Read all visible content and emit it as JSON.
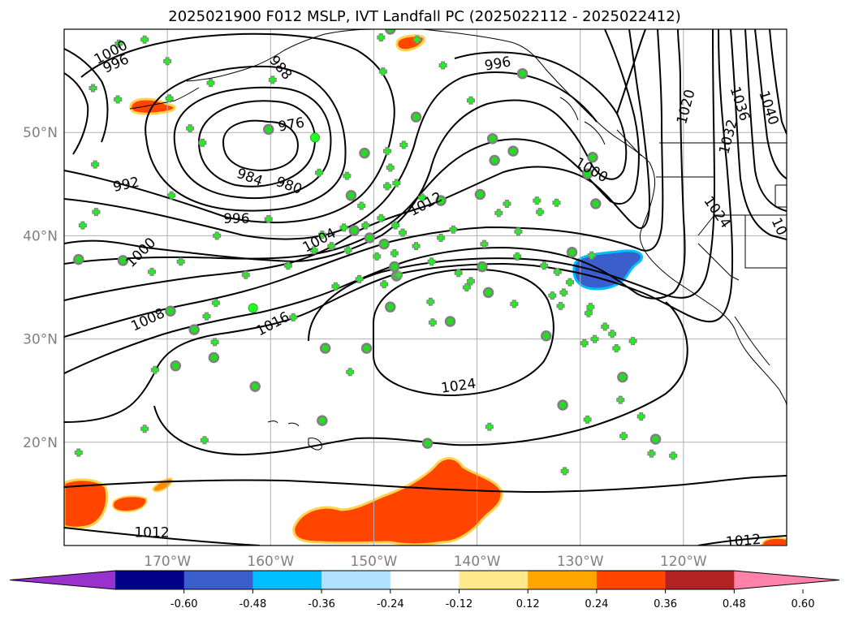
{
  "title": "2025021900 F012 MSLP, IVT Landfall PC (2025022112 - 2025022412)",
  "map": {
    "lon_range": [
      -180,
      -110
    ],
    "lat_range": [
      10,
      60
    ],
    "lat_labels": [
      "50°N",
      "40°N",
      "30°N",
      "20°N"
    ],
    "lon_labels": [
      "170°W",
      "160°W",
      "150°W",
      "140°W",
      "130°W",
      "120°W"
    ],
    "grid": true,
    "contour_labels": [
      {
        "text": "1000",
        "lon": -175.5,
        "lat": 57.8,
        "rot": -28
      },
      {
        "text": "996",
        "lon": -175.0,
        "lat": 56.7,
        "rot": -24
      },
      {
        "text": "988",
        "lon": -159.0,
        "lat": 56.3,
        "rot": 50
      },
      {
        "text": "996",
        "lon": -138.0,
        "lat": 56.7,
        "rot": -10
      },
      {
        "text": "976",
        "lon": -158.0,
        "lat": 50.8,
        "rot": -10
      },
      {
        "text": "984",
        "lon": -162.0,
        "lat": 45.7,
        "rot": 20
      },
      {
        "text": "980",
        "lon": -158.2,
        "lat": 44.9,
        "rot": 20
      },
      {
        "text": "992",
        "lon": -174.0,
        "lat": 45.0,
        "rot": -12
      },
      {
        "text": "996",
        "lon": -163.3,
        "lat": 41.7,
        "rot": 0
      },
      {
        "text": "1000",
        "lon": -172.6,
        "lat": 38.4,
        "rot": -45
      },
      {
        "text": "1004",
        "lon": -155.3,
        "lat": 39.6,
        "rot": -28
      },
      {
        "text": "1012",
        "lon": -145.0,
        "lat": 43.1,
        "rot": -28
      },
      {
        "text": "1008",
        "lon": -171.9,
        "lat": 31.9,
        "rot": -25
      },
      {
        "text": "1016",
        "lon": -159.8,
        "lat": 31.5,
        "rot": -28
      },
      {
        "text": "1024",
        "lon": -141.8,
        "lat": 25.5,
        "rot": -8
      },
      {
        "text": "1000",
        "lon": -128.9,
        "lat": 46.4,
        "rot": 30
      },
      {
        "text": "1020",
        "lon": -119.8,
        "lat": 52.5,
        "rot": -75
      },
      {
        "text": "1036",
        "lon": -114.5,
        "lat": 52.8,
        "rot": 72
      },
      {
        "text": "1040",
        "lon": -111.7,
        "lat": 52.4,
        "rot": 72
      },
      {
        "text": "1032",
        "lon": -115.7,
        "lat": 49.6,
        "rot": -75
      },
      {
        "text": "1024",
        "lon": -116.7,
        "lat": 42.3,
        "rot": 55
      },
      {
        "text": "10",
        "lon": -110.7,
        "lat": 40.9,
        "rot": 65
      },
      {
        "text": "1012",
        "lon": -171.5,
        "lat": 11.3,
        "rot": 0
      },
      {
        "text": "1012",
        "lon": -114.2,
        "lat": 10.5,
        "rot": -5
      }
    ],
    "stations_plus": [
      [
        -174.7,
        58.6
      ],
      [
        -172.2,
        59.0
      ],
      [
        -170.0,
        56.9
      ],
      [
        -177.2,
        54.3
      ],
      [
        -174.8,
        53.2
      ],
      [
        -169.8,
        53.3
      ],
      [
        -169.6,
        43.9
      ],
      [
        -176.9,
        42.3
      ],
      [
        -177.0,
        46.9
      ],
      [
        -165.8,
        54.8
      ],
      [
        -166.6,
        49.0
      ],
      [
        -167.8,
        50.4
      ],
      [
        -165.2,
        40.0
      ],
      [
        -159.8,
        55.1
      ],
      [
        -160.2,
        41.6
      ],
      [
        -155.3,
        46.1
      ],
      [
        -155.0,
        40.1
      ],
      [
        -158.3,
        37.1
      ],
      [
        -155.8,
        38.6
      ],
      [
        -154.1,
        39.0
      ],
      [
        -152.5,
        38.6
      ],
      [
        -153.7,
        35.1
      ],
      [
        -152.9,
        40.8
      ],
      [
        -150.8,
        41.0
      ],
      [
        -148.7,
        44.8
      ],
      [
        -147.9,
        41.0
      ],
      [
        -148.0,
        38.3
      ],
      [
        -149.7,
        38.0
      ],
      [
        -151.4,
        35.8
      ],
      [
        -149.0,
        35.3
      ],
      [
        -148.7,
        48.2
      ],
      [
        -147.2,
        40.3
      ],
      [
        -145.9,
        39.0
      ],
      [
        -145.3,
        43.7
      ],
      [
        -144.4,
        37.5
      ],
      [
        -143.5,
        39.8
      ],
      [
        -142.3,
        40.6
      ],
      [
        -141.8,
        36.4
      ],
      [
        -141.0,
        35.0
      ],
      [
        -140.6,
        35.6
      ],
      [
        -139.3,
        39.2
      ],
      [
        -137.9,
        42.2
      ],
      [
        -137.1,
        43.1
      ],
      [
        -136.0,
        40.4
      ],
      [
        -134.2,
        43.4
      ],
      [
        -133.9,
        42.3
      ],
      [
        -132.3,
        43.2
      ],
      [
        -133.5,
        37.1
      ],
      [
        -132.7,
        34.2
      ],
      [
        -132.2,
        36.5
      ],
      [
        -131.0,
        35.5
      ],
      [
        -129.2,
        32.5
      ],
      [
        -129.0,
        33.1
      ],
      [
        -129.6,
        29.6
      ],
      [
        -128.6,
        30.0
      ],
      [
        -127.6,
        31.2
      ],
      [
        -126.1,
        24.1
      ],
      [
        -124.1,
        22.5
      ],
      [
        -123.1,
        18.9
      ],
      [
        -121.0,
        18.7
      ],
      [
        -125.8,
        20.6
      ],
      [
        -126.5,
        29.1
      ],
      [
        -129.3,
        22.2
      ],
      [
        -131.5,
        17.2
      ],
      [
        -131.9,
        33.2
      ],
      [
        -131.6,
        34.5
      ],
      [
        -124.9,
        29.8
      ],
      [
        -126.9,
        30.5
      ],
      [
        -128.9,
        38.1
      ],
      [
        -136.1,
        38.0
      ],
      [
        -136.4,
        33.4
      ],
      [
        -138.8,
        21.5
      ],
      [
        -144.5,
        33.6
      ],
      [
        -144.3,
        31.6
      ],
      [
        -152.6,
        45.8
      ],
      [
        -149.3,
        41.7
      ],
      [
        -147.1,
        48.8
      ],
      [
        -143.3,
        56.5
      ],
      [
        -140.6,
        53.1
      ],
      [
        -145.8,
        59.0
      ],
      [
        -149.3,
        59.2
      ],
      [
        -149.1,
        55.9
      ],
      [
        -147.6,
        36.2
      ],
      [
        -151.2,
        42.9
      ],
      [
        -162.4,
        36.2
      ],
      [
        -165.3,
        33.5
      ],
      [
        -166.2,
        32.2
      ],
      [
        -165.4,
        29.7
      ],
      [
        -168.7,
        37.5
      ],
      [
        -171.5,
        36.5
      ],
      [
        -172.2,
        21.3
      ],
      [
        -166.4,
        20.2
      ],
      [
        -171.2,
        27.0
      ],
      [
        -178.6,
        19.0
      ],
      [
        -178.2,
        41.0
      ],
      [
        -157.8,
        32.1
      ],
      [
        -152.3,
        26.8
      ],
      [
        -148.4,
        46.6
      ],
      [
        -147.8,
        45.1
      ]
    ],
    "stations_circle": [
      [
        -178.6,
        37.7
      ],
      [
        -174.3,
        37.6
      ],
      [
        -167.4,
        30.9
      ],
      [
        -165.5,
        28.2
      ],
      [
        -161.5,
        25.4
      ],
      [
        -169.7,
        32.7
      ],
      [
        -169.2,
        27.4
      ],
      [
        -154.7,
        29.1
      ],
      [
        -150.7,
        29.1
      ],
      [
        -148.4,
        33.1
      ],
      [
        -147.8,
        36.1
      ],
      [
        -155.0,
        22.1
      ],
      [
        -148.0,
        37.0
      ],
      [
        -144.8,
        19.9
      ],
      [
        -139.5,
        37.0
      ],
      [
        -138.9,
        34.5
      ],
      [
        -136.5,
        48.2
      ],
      [
        -138.3,
        47.3
      ],
      [
        -138.5,
        49.4
      ],
      [
        -139.7,
        44.0
      ],
      [
        -145.9,
        51.5
      ],
      [
        -152.2,
        43.9
      ],
      [
        -150.9,
        48.0
      ],
      [
        -151.9,
        40.5
      ],
      [
        -150.4,
        39.8
      ],
      [
        -149.0,
        39.2
      ],
      [
        -143.5,
        43.4
      ],
      [
        -133.3,
        30.3
      ],
      [
        -131.7,
        23.6
      ],
      [
        -129.3,
        46.0
      ],
      [
        -128.8,
        47.6
      ],
      [
        -128.5,
        43.1
      ],
      [
        -125.9,
        26.3
      ],
      [
        -122.7,
        20.3
      ],
      [
        -130.8,
        38.4
      ],
      [
        -160.2,
        50.3
      ],
      [
        -148.4,
        60.0
      ],
      [
        -135.6,
        55.7
      ],
      [
        -142.6,
        31.7
      ]
    ],
    "stations_green": [
      [
        -155.7,
        49.5
      ],
      [
        -161.7,
        33.0
      ]
    ],
    "shaded_regions": [
      {
        "level": "-0.48 to -0.36",
        "color": "#3a5fcd",
        "desc": "off California"
      },
      {
        "level": "0.36 to 0.48",
        "color": "#ff4500",
        "desc": "subtropics and north Pacific"
      }
    ],
    "coastline_color": "#000000",
    "contour_color": "#000000"
  },
  "colorbar": {
    "colors": [
      "#9932cc",
      "#00008b",
      "#3a5fcd",
      "#00bfff",
      "#b0e2ff",
      "#ffffff",
      "#ffe98a",
      "#ffa500",
      "#ff4500",
      "#b22222",
      "#ff82ab"
    ],
    "ticks": [
      "-0.60",
      "-0.48",
      "-0.36",
      "-0.24",
      "-0.12",
      "0.12",
      "0.24",
      "0.36",
      "0.48",
      "0.60"
    ]
  }
}
